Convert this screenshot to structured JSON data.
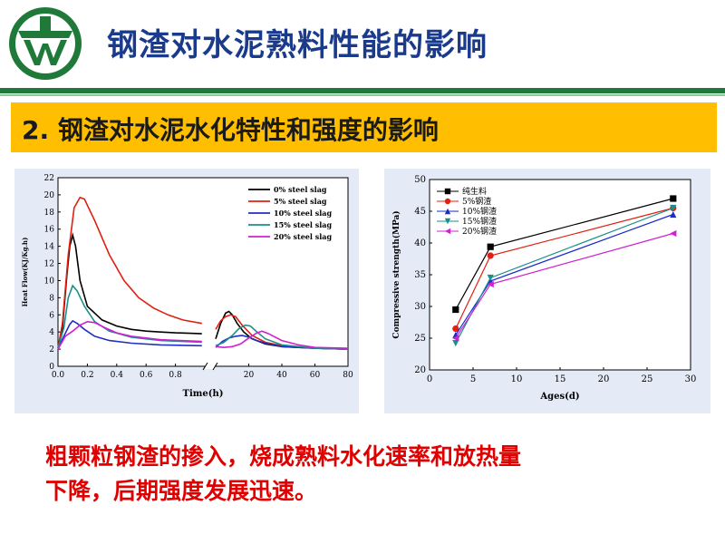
{
  "slide": {
    "title": "钢渣对水泥熟料性能的影响",
    "section_title": "2. 钢渣对水泥水化特性和强度的影响",
    "caption_lines": [
      "粗颗粒钢渣的掺入，烧成熟料水化速率和放热量",
      "下降，后期强度发展迅速。"
    ]
  },
  "colors": {
    "title": "#1a3a8c",
    "header_rule": "#1f7a3a",
    "section_bar": "#ffbf00",
    "caption": "#e00000",
    "panel_bg": "#e4eaf6"
  },
  "chart_data": [
    {
      "type": "line",
      "xlabel": "Time(h)",
      "ylabel": "Heat Flow(KJ/Kg.h)",
      "x_ticks_left": [
        "0.0",
        "0.2",
        "0.4",
        "0.6",
        "0.8"
      ],
      "x_ticks_right": [
        "20",
        "40",
        "60",
        "80"
      ],
      "y_ticks": [
        "0",
        "2",
        "4",
        "6",
        "8",
        "10",
        "12",
        "14",
        "16",
        "18",
        "20",
        "22"
      ],
      "ylim": [
        0,
        22
      ],
      "xlim_left": [
        0,
        1.0
      ],
      "xlim_right": [
        0,
        80
      ],
      "legend_position": "top-right",
      "series": [
        {
          "name": "0%  steel slag",
          "color": "#000000",
          "left": [
            [
              0.0,
              2.1
            ],
            [
              0.03,
              4.5
            ],
            [
              0.06,
              10.5
            ],
            [
              0.08,
              14.0
            ],
            [
              0.1,
              15.3
            ],
            [
              0.12,
              14.0
            ],
            [
              0.15,
              10.0
            ],
            [
              0.2,
              7.0
            ],
            [
              0.3,
              5.4
            ],
            [
              0.4,
              4.7
            ],
            [
              0.5,
              4.3
            ],
            [
              0.6,
              4.1
            ],
            [
              0.7,
              4.0
            ],
            [
              0.8,
              3.9
            ],
            [
              0.9,
              3.85
            ],
            [
              0.98,
              3.8
            ]
          ],
          "right": [
            [
              0,
              3.2
            ],
            [
              3,
              5.0
            ],
            [
              6,
              6.2
            ],
            [
              8,
              6.4
            ],
            [
              10,
              6.0
            ],
            [
              13,
              5.0
            ],
            [
              17,
              4.0
            ],
            [
              22,
              3.2
            ],
            [
              30,
              2.6
            ],
            [
              40,
              2.3
            ],
            [
              60,
              2.1
            ],
            [
              80,
              2.0
            ]
          ]
        },
        {
          "name": "5%  steel slag",
          "color": "#e02010",
          "left": [
            [
              0.0,
              2.1
            ],
            [
              0.03,
              5.0
            ],
            [
              0.07,
              13.0
            ],
            [
              0.11,
              18.5
            ],
            [
              0.15,
              19.7
            ],
            [
              0.18,
              19.5
            ],
            [
              0.25,
              17.0
            ],
            [
              0.35,
              13.0
            ],
            [
              0.45,
              10.0
            ],
            [
              0.55,
              8.0
            ],
            [
              0.65,
              6.8
            ],
            [
              0.75,
              6.0
            ],
            [
              0.85,
              5.4
            ],
            [
              0.98,
              5.0
            ]
          ],
          "right": [
            [
              0,
              4.3
            ],
            [
              3,
              5.3
            ],
            [
              6,
              5.8
            ],
            [
              9,
              6.0
            ],
            [
              12,
              5.8
            ],
            [
              16,
              4.8
            ],
            [
              22,
              3.6
            ],
            [
              30,
              2.8
            ],
            [
              40,
              2.4
            ],
            [
              60,
              2.1
            ],
            [
              80,
              2.0
            ]
          ]
        },
        {
          "name": "10%  steel slag",
          "color": "#2030c0",
          "left": [
            [
              0.0,
              2.1
            ],
            [
              0.04,
              3.5
            ],
            [
              0.08,
              4.9
            ],
            [
              0.1,
              5.3
            ],
            [
              0.13,
              5.0
            ],
            [
              0.18,
              4.3
            ],
            [
              0.25,
              3.5
            ],
            [
              0.35,
              3.0
            ],
            [
              0.5,
              2.7
            ],
            [
              0.7,
              2.5
            ],
            [
              0.98,
              2.4
            ]
          ],
          "right": [
            [
              0,
              2.2
            ],
            [
              4,
              2.9
            ],
            [
              8,
              3.3
            ],
            [
              12,
              3.5
            ],
            [
              16,
              3.6
            ],
            [
              20,
              3.4
            ],
            [
              25,
              3.0
            ],
            [
              30,
              2.7
            ],
            [
              40,
              2.3
            ],
            [
              60,
              2.1
            ],
            [
              80,
              2.0
            ]
          ]
        },
        {
          "name": "15%  steel slag",
          "color": "#1a8f8a",
          "left": [
            [
              0.0,
              2.1
            ],
            [
              0.04,
              4.5
            ],
            [
              0.07,
              8.0
            ],
            [
              0.1,
              9.4
            ],
            [
              0.13,
              8.8
            ],
            [
              0.18,
              7.0
            ],
            [
              0.25,
              5.2
            ],
            [
              0.35,
              4.1
            ],
            [
              0.5,
              3.4
            ],
            [
              0.7,
              3.0
            ],
            [
              0.98,
              2.8
            ]
          ],
          "right": [
            [
              0,
              2.4
            ],
            [
              5,
              2.8
            ],
            [
              10,
              3.6
            ],
            [
              14,
              4.4
            ],
            [
              18,
              4.8
            ],
            [
              21,
              4.7
            ],
            [
              25,
              4.0
            ],
            [
              30,
              3.2
            ],
            [
              40,
              2.5
            ],
            [
              60,
              2.1
            ],
            [
              80,
              2.0
            ]
          ]
        },
        {
          "name": "20%  steel slag",
          "color": "#d020d0",
          "left": [
            [
              0.0,
              2.0
            ],
            [
              0.05,
              3.5
            ],
            [
              0.1,
              4.1
            ],
            [
              0.15,
              4.8
            ],
            [
              0.2,
              5.2
            ],
            [
              0.25,
              5.1
            ],
            [
              0.32,
              4.5
            ],
            [
              0.4,
              3.9
            ],
            [
              0.5,
              3.5
            ],
            [
              0.7,
              3.1
            ],
            [
              0.98,
              2.9
            ]
          ],
          "right": [
            [
              0,
              2.3
            ],
            [
              5,
              2.2
            ],
            [
              10,
              2.3
            ],
            [
              15,
              2.6
            ],
            [
              20,
              3.3
            ],
            [
              25,
              3.9
            ],
            [
              28,
              4.1
            ],
            [
              32,
              3.8
            ],
            [
              40,
              3.0
            ],
            [
              50,
              2.5
            ],
            [
              60,
              2.2
            ],
            [
              80,
              2.1
            ]
          ]
        }
      ]
    },
    {
      "type": "line",
      "xlabel": "Ages(d)",
      "ylabel": "Compressive strength(MPa)",
      "xlim": [
        0,
        30
      ],
      "ylim": [
        20,
        50
      ],
      "x_ticks": [
        "0",
        "5",
        "10",
        "15",
        "20",
        "25",
        "30"
      ],
      "y_ticks": [
        "20",
        "25",
        "30",
        "35",
        "40",
        "45",
        "50"
      ],
      "legend_position": "top-left",
      "series": [
        {
          "name": "纯生料",
          "color": "#000000",
          "marker": "square",
          "x": [
            3,
            7,
            28
          ],
          "y": [
            29.5,
            39.4,
            47.0
          ]
        },
        {
          "name": "5%钢渣",
          "color": "#e02010",
          "marker": "circle",
          "x": [
            3,
            7,
            28
          ],
          "y": [
            26.5,
            38.0,
            45.5
          ]
        },
        {
          "name": "10%钢渣",
          "color": "#1a2acc",
          "marker": "triangle-up",
          "x": [
            3,
            7,
            28
          ],
          "y": [
            25.5,
            34.0,
            44.5
          ]
        },
        {
          "name": "15%钢渣",
          "color": "#1a8f8a",
          "marker": "triangle-down",
          "x": [
            3,
            7,
            28
          ],
          "y": [
            24.2,
            34.5,
            45.5
          ]
        },
        {
          "name": "20%钢渣",
          "color": "#d020d0",
          "marker": "triangle-left",
          "x": [
            3,
            7,
            28
          ],
          "y": [
            25.0,
            33.5,
            41.5
          ]
        }
      ]
    }
  ]
}
